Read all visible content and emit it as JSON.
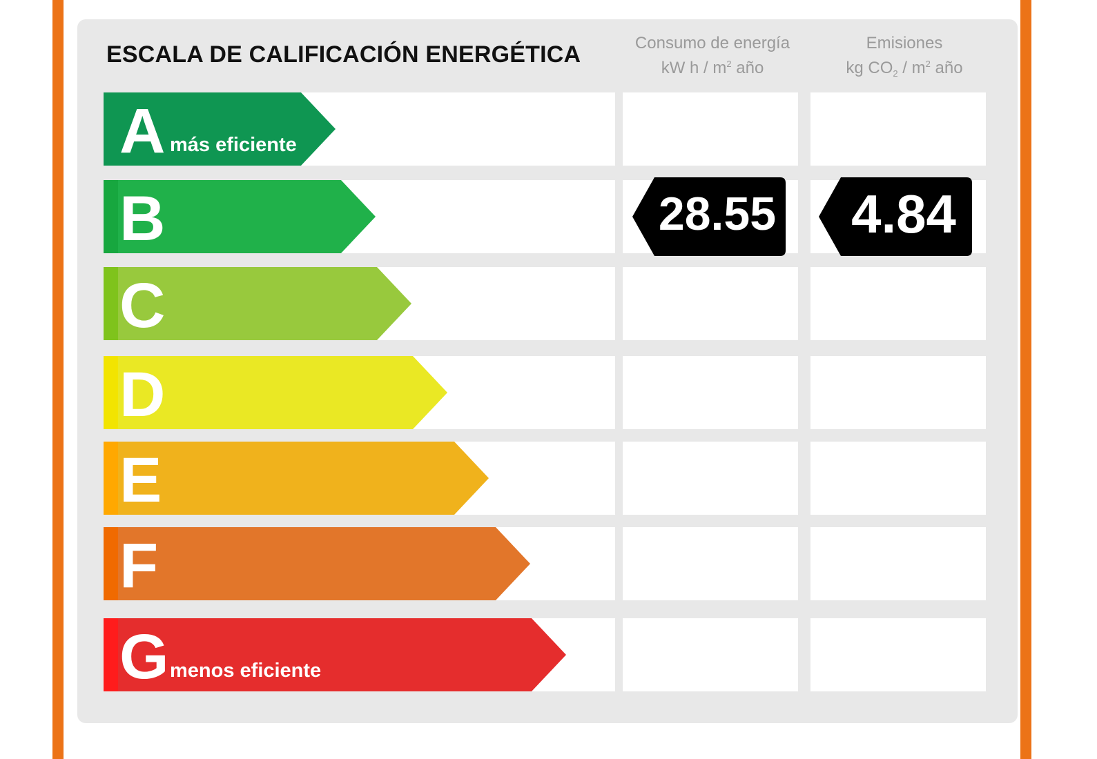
{
  "title": "ESCALA DE CALIFICACIÓN ENERGÉTICA",
  "columns": {
    "energy": {
      "line1": "Consumo de energía",
      "line2_pre": "kW h / m",
      "line2_sup": "2",
      "line2_post": " año"
    },
    "emissions": {
      "line1": "Emisiones",
      "line2_pre": "kg CO",
      "line2_sub": "2",
      "line2_mid": " / m",
      "line2_sup": "2",
      "line2_post": " año"
    }
  },
  "ratings": [
    {
      "letter": "A",
      "label": "más eficiente",
      "color": "#0f9652",
      "stripe": "#0f9652"
    },
    {
      "letter": "B",
      "label": "",
      "color": "#20b14a",
      "stripe": "#17a73f"
    },
    {
      "letter": "C",
      "label": "",
      "color": "#98c93d",
      "stripe": "#7fc31c"
    },
    {
      "letter": "D",
      "label": "",
      "color": "#eae824",
      "stripe": "#f2e400"
    },
    {
      "letter": "E",
      "label": "",
      "color": "#f0b21c",
      "stripe": "#ffa800"
    },
    {
      "letter": "F",
      "label": "",
      "color": "#e2762a",
      "stripe": "#f06a00"
    },
    {
      "letter": "G",
      "label": "menos eficiente",
      "color": "#e52d2d",
      "stripe": "#ff1c1c"
    }
  ],
  "result": {
    "rating": "B",
    "energy_value": "28.55",
    "emissions_value": "4.84",
    "badge_color": "#000000"
  },
  "frame_color": "#ec7317"
}
